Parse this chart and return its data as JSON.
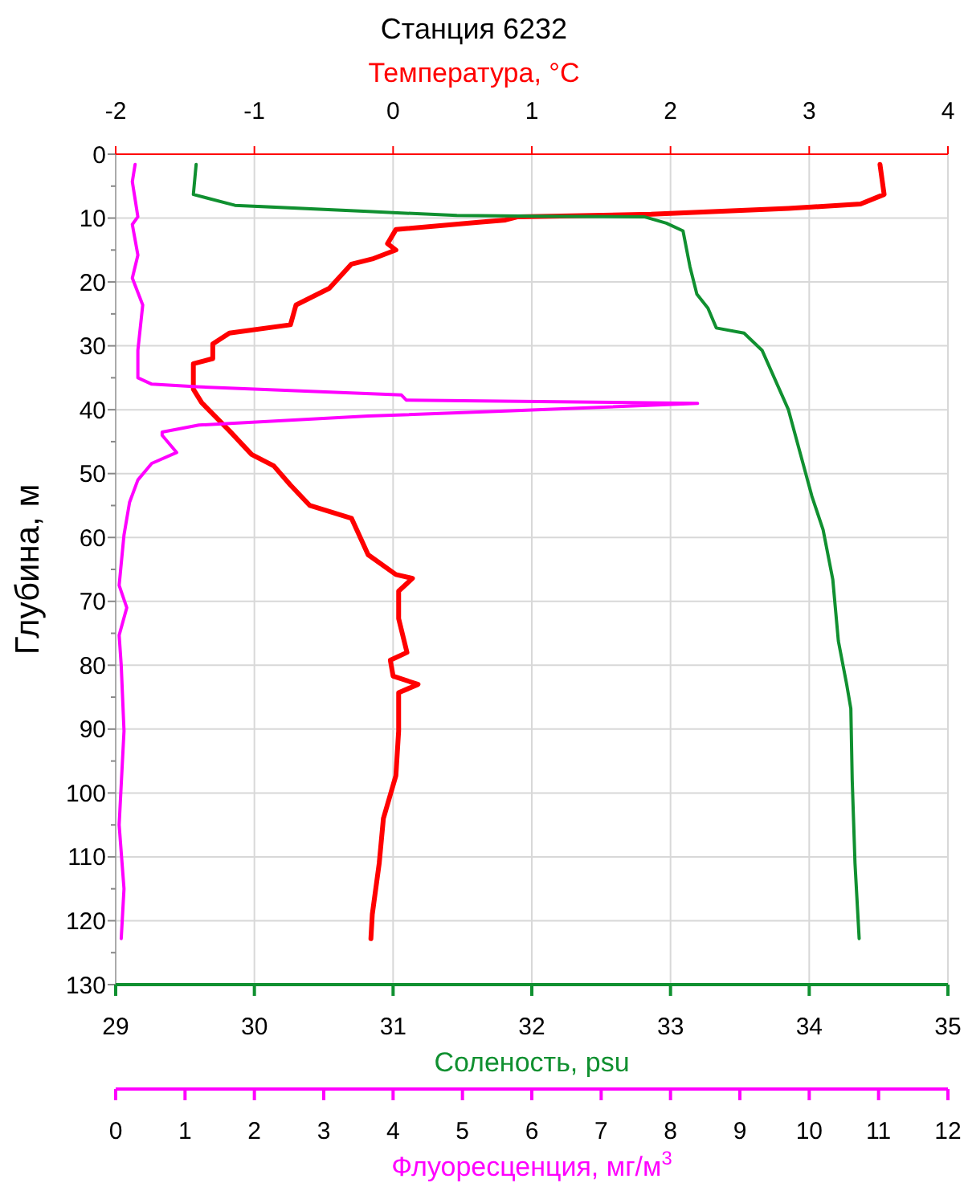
{
  "chart_data": [
    {
      "type": "line",
      "title": "Станция 6232",
      "xlabel": "Соленость, psu",
      "x2label": "Температура, °C",
      "ylabel": "Глубина, м",
      "xlim": [
        29,
        35
      ],
      "xticks": [
        29,
        30,
        31,
        32,
        33,
        34,
        35
      ],
      "x2lim": [
        -2,
        4
      ],
      "x2ticks": [
        -2,
        -1,
        0,
        1,
        2,
        3,
        4
      ],
      "ylim": [
        130,
        0
      ],
      "yticks": [
        0,
        10,
        20,
        30,
        40,
        50,
        60,
        70,
        80,
        90,
        100,
        110,
        120,
        130
      ],
      "grid": true,
      "line_style": "solid",
      "series": [
        {
          "axis": "x2",
          "color": "#ff0000",
          "x": [
            3.51,
            3.54,
            3.37,
            2.85,
            1.86,
            0.9,
            0.81,
            0.6,
            0.02,
            -0.04,
            0.02,
            -0.15,
            -0.3,
            -0.46,
            -0.7,
            -0.74,
            -1.18,
            -1.3,
            -1.3,
            -1.44,
            -1.44,
            -1.38,
            -1.18,
            -1.02,
            -0.86,
            -0.74,
            -0.6,
            -0.3,
            -0.18,
            0.02,
            0.14,
            0.04,
            0.04,
            0.1,
            -0.02,
            0.0,
            0.18,
            0.04,
            0.04,
            0.02,
            -0.07,
            -0.1,
            -0.15,
            -0.16
          ],
          "values": [
            1.6,
            6.3,
            7.8,
            8.5,
            9.4,
            9.8,
            10.3,
            10.7,
            11.8,
            14,
            15,
            16.4,
            17.2,
            21,
            23.6,
            26.7,
            28,
            29.7,
            32,
            32.8,
            36.8,
            38.9,
            43.3,
            47,
            48.8,
            51.8,
            55,
            57,
            62.7,
            65.8,
            66.4,
            68.4,
            72.7,
            78,
            79.2,
            81.7,
            83,
            84.3,
            90.3,
            97.3,
            104,
            111,
            119,
            122.8
          ]
        },
        {
          "color": "#109030",
          "x": [
            29.58,
            29.56,
            29.86,
            30.85,
            31.46,
            32.06,
            32.81,
            32.97,
            33.09,
            33.14,
            33.19,
            33.27,
            33.33,
            33.53,
            33.66,
            33.85,
            34.02,
            34.1,
            34.17,
            34.21,
            34.27,
            34.3,
            34.31,
            34.33,
            34.36
          ],
          "values": [
            1.6,
            6.3,
            8,
            9,
            9.6,
            9.7,
            9.8,
            10.8,
            12,
            17.6,
            21.9,
            24.1,
            27.2,
            28,
            30.7,
            40,
            53.6,
            58.8,
            66.6,
            76.2,
            83,
            86.8,
            98,
            111,
            122.8
          ]
        }
      ]
    },
    {
      "type": "line",
      "xlabel": "Флуоресценция, мг/м$^{3}$",
      "xlim": [
        0,
        12
      ],
      "xticks": [
        0,
        1,
        2,
        3,
        4,
        5,
        6,
        7,
        8,
        9,
        10,
        11,
        12
      ],
      "ylim": [
        130,
        0
      ],
      "tick_labels": "x",
      "line_style": "solid",
      "series": [
        {
          "color": "#ff00ff",
          "x": [
            0.28,
            0.24,
            0.32,
            0.24,
            0.32,
            0.24,
            0.39,
            0.32,
            0.32,
            0.52,
            1.16,
            4.12,
            4.19,
            8.39,
            5.63,
            3.64,
            1.2,
            0.67,
            0.67,
            0.88,
            0.52,
            0.32,
            0.2,
            0.12,
            0.05,
            0.16,
            0.05,
            0.08,
            0.12,
            0.05,
            0.12,
            0.08
          ],
          "values": [
            1.6,
            4.3,
            9.8,
            11,
            15.8,
            19.4,
            23.6,
            30.7,
            35,
            36,
            36.4,
            37.7,
            38.5,
            39,
            40.2,
            41,
            42.4,
            43.5,
            44,
            46.7,
            48.4,
            51,
            54.5,
            59.6,
            67.5,
            71,
            75.3,
            80,
            90.3,
            105,
            115,
            122.8
          ]
        }
      ]
    }
  ]
}
